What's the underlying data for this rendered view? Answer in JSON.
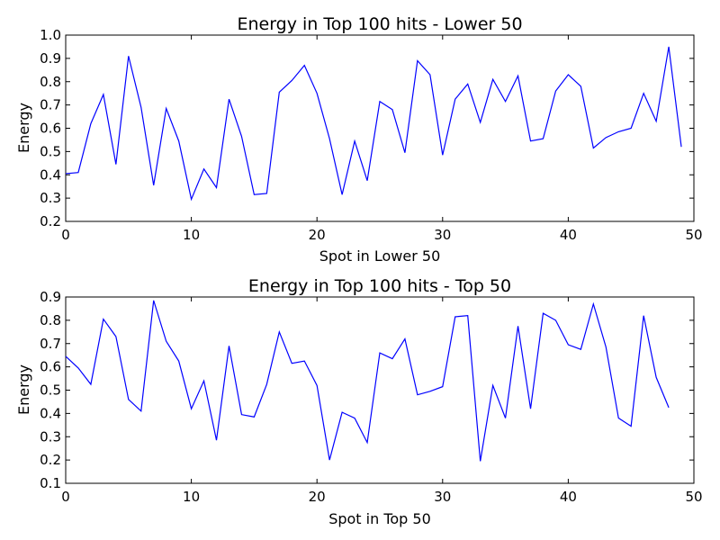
{
  "chart_data": [
    {
      "type": "line",
      "title": "Energy in Top 100 hits - Lower 50",
      "xlabel": "Spot in Lower 50",
      "ylabel": "Energy",
      "xlim": [
        0,
        50
      ],
      "ylim": [
        0.2,
        1.0
      ],
      "xticks": [
        0,
        10,
        20,
        30,
        40,
        50
      ],
      "yticks": [
        0.2,
        0.3,
        0.4,
        0.5,
        0.6,
        0.7,
        0.8,
        0.9,
        1.0
      ],
      "xtick_labels": [
        "0",
        "10",
        "20",
        "30",
        "40",
        "50"
      ],
      "ytick_labels": [
        "0.2",
        "0.3",
        "0.4",
        "0.5",
        "0.6",
        "0.7",
        "0.8",
        "0.9",
        "1.0"
      ],
      "grid": false,
      "color": "#0000ff",
      "series": [
        {
          "x": [
            0,
            1,
            2,
            3,
            4,
            5,
            6,
            7,
            8,
            9,
            10,
            11,
            12,
            13,
            14,
            15,
            16,
            17,
            18,
            19,
            20,
            21,
            22,
            23,
            24,
            25,
            26,
            27,
            28,
            29,
            30,
            31,
            32,
            33,
            34,
            35,
            36,
            37,
            38,
            39,
            40,
            41,
            42,
            43,
            44,
            45,
            46,
            47,
            48,
            49
          ],
          "values": [
            0.405,
            0.41,
            0.62,
            0.745,
            0.445,
            0.91,
            0.69,
            0.355,
            0.685,
            0.545,
            0.295,
            0.425,
            0.345,
            0.725,
            0.565,
            0.315,
            0.32,
            0.755,
            0.805,
            0.87,
            0.75,
            0.555,
            0.315,
            0.545,
            0.375,
            0.715,
            0.68,
            0.495,
            0.89,
            0.83,
            0.485,
            0.725,
            0.79,
            0.625,
            0.81,
            0.715,
            0.825,
            0.545,
            0.555,
            0.76,
            0.83,
            0.78,
            0.515,
            0.56,
            0.585,
            0.6,
            0.75,
            0.63,
            0.95,
            0.52
          ]
        }
      ]
    },
    {
      "type": "line",
      "title": "Energy in Top 100 hits - Top 50",
      "xlabel": "Spot in Top 50",
      "ylabel": "Energy",
      "xlim": [
        0,
        50
      ],
      "ylim": [
        0.1,
        0.9
      ],
      "xticks": [
        0,
        10,
        20,
        30,
        40,
        50
      ],
      "yticks": [
        0.1,
        0.2,
        0.3,
        0.4,
        0.5,
        0.6,
        0.7,
        0.8,
        0.9
      ],
      "xtick_labels": [
        "0",
        "10",
        "20",
        "30",
        "40",
        "50"
      ],
      "ytick_labels": [
        "0.1",
        "0.2",
        "0.3",
        "0.4",
        "0.5",
        "0.6",
        "0.7",
        "0.8",
        "0.9"
      ],
      "grid": false,
      "color": "#0000ff",
      "series": [
        {
          "x": [
            0,
            1,
            2,
            3,
            4,
            5,
            6,
            7,
            8,
            9,
            10,
            11,
            12,
            13,
            14,
            15,
            16,
            17,
            18,
            19,
            20,
            21,
            22,
            23,
            24,
            25,
            26,
            27,
            28,
            29,
            30,
            31,
            32,
            33,
            34,
            35,
            36,
            37,
            38,
            39,
            40,
            41,
            42,
            43,
            44,
            45,
            46,
            47,
            48
          ],
          "values": [
            0.645,
            0.595,
            0.525,
            0.805,
            0.73,
            0.46,
            0.41,
            0.885,
            0.71,
            0.625,
            0.42,
            0.54,
            0.285,
            0.69,
            0.395,
            0.385,
            0.525,
            0.75,
            0.615,
            0.625,
            0.52,
            0.2,
            0.405,
            0.38,
            0.275,
            0.66,
            0.635,
            0.72,
            0.48,
            0.495,
            0.515,
            0.815,
            0.82,
            0.195,
            0.52,
            0.38,
            0.775,
            0.42,
            0.83,
            0.8,
            0.695,
            0.675,
            0.87,
            0.685,
            0.38,
            0.345,
            0.82,
            0.555,
            0.425
          ]
        }
      ]
    }
  ]
}
